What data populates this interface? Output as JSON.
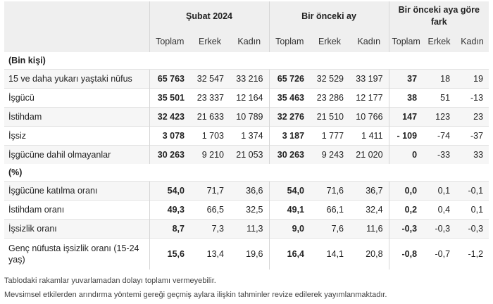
{
  "header": {
    "periods": [
      "Şubat 2024",
      "Bir önceki ay",
      "Bir önceki aya göre fark"
    ],
    "subcols": [
      "Toplam",
      "Erkek",
      "Kadın"
    ]
  },
  "groups": [
    {
      "label": "(Bin kişi)",
      "rows": [
        {
          "label": "15 ve daha yukarı yaştaki nüfus",
          "values": [
            "65 763",
            "32 547",
            "33 216",
            "65 726",
            "32 529",
            "33 197",
            "37",
            "18",
            "19"
          ]
        },
        {
          "label": "İşgücü",
          "values": [
            "35 501",
            "23 337",
            "12 164",
            "35 463",
            "23 286",
            "12 177",
            "38",
            "51",
            "-13"
          ]
        },
        {
          "label": "İstihdam",
          "values": [
            "32 423",
            "21 633",
            "10 789",
            "32 276",
            "21 510",
            "10 766",
            "147",
            "123",
            "23"
          ]
        },
        {
          "label": "İşsiz",
          "values": [
            "3 078",
            "1 703",
            "1 374",
            "3 187",
            "1 777",
            "1 411",
            "- 109",
            "-74",
            "-37"
          ]
        },
        {
          "label": "İşgücüne dahil olmayanlar",
          "values": [
            "30 263",
            "9 210",
            "21 053",
            "30 263",
            "9 243",
            "21 020",
            "0",
            "-33",
            "33"
          ]
        }
      ]
    },
    {
      "label": "(%)",
      "rows": [
        {
          "label": "İşgücüne katılma oranı",
          "values": [
            "54,0",
            "71,7",
            "36,6",
            "54,0",
            "71,6",
            "36,7",
            "0,0",
            "0,1",
            "-0,1"
          ]
        },
        {
          "label": "İstihdam oranı",
          "values": [
            "49,3",
            "66,5",
            "32,5",
            "49,1",
            "66,1",
            "32,4",
            "0,2",
            "0,4",
            "0,1"
          ]
        },
        {
          "label": "İşsizlik oranı",
          "values": [
            "8,7",
            "7,3",
            "11,3",
            "9,0",
            "7,6",
            "11,6",
            "-0,3",
            "-0,3",
            "-0,3"
          ]
        },
        {
          "label": "Genç nüfusta işsizlik oranı (15-24 yaş)",
          "values": [
            "15,6",
            "13,4",
            "19,6",
            "16,4",
            "14,1",
            "20,8",
            "-0,8",
            "-0,7",
            "-1,2"
          ]
        }
      ]
    }
  ],
  "notes": [
    "Tablodaki rakamlar yuvarlamadan dolayı toplamı vermeyebilir.",
    "Mevsimsel etkilerden arındırma yöntemi gereği geçmiş aylara ilişkin tahminler revize edilerek yayımlanmaktadır."
  ]
}
